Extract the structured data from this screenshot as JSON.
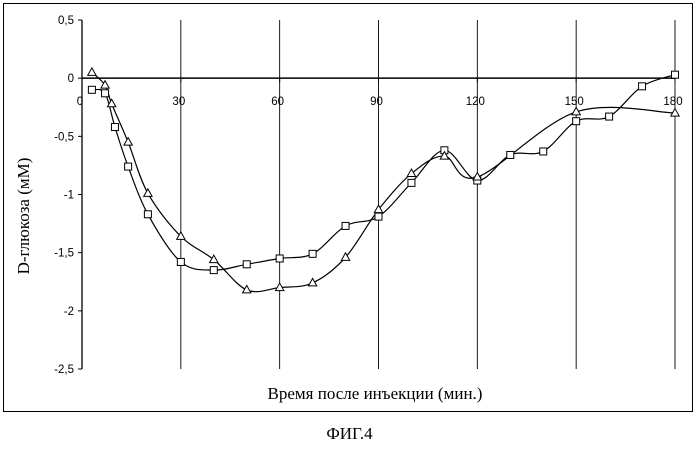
{
  "chart_data": {
    "type": "line",
    "title": "",
    "xlabel": "Время после инъекции (мин.)",
    "ylabel": "D-глюкоза (мМ)",
    "xlim": [
      0,
      180
    ],
    "ylim": [
      -2.5,
      0.5
    ],
    "x_ticks": [
      0,
      30,
      60,
      90,
      120,
      150,
      180
    ],
    "x_tick_labels": [
      "0",
      "30",
      "60",
      "90",
      "120",
      "150",
      "180"
    ],
    "y_ticks": [
      0.5,
      0,
      -0.5,
      -1,
      -1.5,
      -2,
      -2.5
    ],
    "y_tick_labels": [
      "0,5",
      "0",
      "-0,5",
      "-1",
      "-1,5",
      "-2",
      "-2,5"
    ],
    "grid": "vertical",
    "series": [
      {
        "name": "squares",
        "marker": "square",
        "x": [
          3,
          7,
          10,
          14,
          20,
          30,
          40,
          50,
          60,
          70,
          80,
          90,
          100,
          110,
          120,
          130,
          140,
          150,
          160,
          170,
          180
        ],
        "y": [
          -0.1,
          -0.13,
          -0.42,
          -0.76,
          -1.17,
          -1.58,
          -1.65,
          -1.6,
          -1.55,
          -1.51,
          -1.27,
          -1.19,
          -0.9,
          -0.62,
          -0.88,
          -0.66,
          -0.63,
          -0.37,
          -0.33,
          -0.07,
          0.03
        ]
      },
      {
        "name": "triangles",
        "marker": "triangle",
        "x": [
          3,
          7,
          9,
          14,
          20,
          30,
          40,
          50,
          60,
          70,
          80,
          90,
          100,
          110,
          120,
          150,
          180
        ],
        "y": [
          0.05,
          -0.06,
          -0.22,
          -0.55,
          -0.99,
          -1.36,
          -1.56,
          -1.82,
          -1.8,
          -1.76,
          -1.54,
          -1.13,
          -0.82,
          -0.67,
          -0.85,
          -0.29,
          -0.3
        ]
      }
    ]
  },
  "caption": "ФИГ.4"
}
